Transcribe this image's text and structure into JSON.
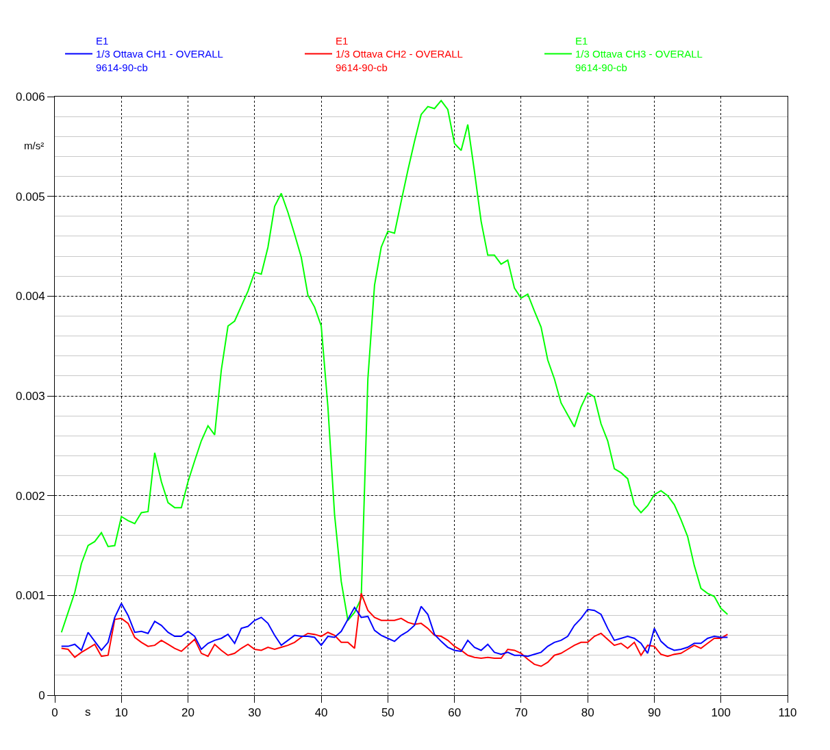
{
  "chart_data": {
    "type": "line",
    "xlabel": "s",
    "ylabel": "m/s²",
    "x": [
      1,
      2,
      3,
      4,
      5,
      6,
      7,
      8,
      9,
      10,
      11,
      12,
      13,
      14,
      15,
      16,
      17,
      18,
      19,
      20,
      21,
      22,
      23,
      24,
      25,
      26,
      27,
      28,
      29,
      30,
      31,
      32,
      33,
      34,
      35,
      36,
      37,
      38,
      39,
      40,
      41,
      42,
      43,
      44,
      45,
      46,
      47,
      48,
      49,
      50,
      51,
      52,
      53,
      54,
      55,
      56,
      57,
      58,
      59,
      60,
      61,
      62,
      63,
      64,
      65,
      66,
      67,
      68,
      69,
      70,
      71,
      72,
      73,
      74,
      75,
      76,
      77,
      78,
      79,
      80,
      81,
      82,
      83,
      84,
      85,
      86,
      87,
      88,
      89,
      90,
      91,
      92,
      93,
      94,
      95,
      96,
      97,
      98,
      99,
      100,
      101
    ],
    "xlim": [
      0,
      110
    ],
    "xticks": [
      0,
      10,
      20,
      30,
      40,
      50,
      60,
      70,
      80,
      90,
      100,
      110
    ],
    "ylim": [
      0,
      0.006
    ],
    "yticks": [
      0,
      0.001,
      0.002,
      0.003,
      0.004,
      0.005,
      0.006
    ],
    "grid": true,
    "legend": "top",
    "line_style": "solid",
    "series": [
      {
        "name": "E1\n1/3 Ottava CH1 - OVERALL\n9614-90-cb",
        "color": "#0000ff",
        "values": [
          0.00049,
          0.00049,
          0.00051,
          0.00045,
          0.00063,
          0.00054,
          0.00045,
          0.00053,
          0.00078,
          0.00092,
          0.0008,
          0.00063,
          0.00064,
          0.00062,
          0.00074,
          0.0007,
          0.00063,
          0.00059,
          0.00059,
          0.00064,
          0.00059,
          0.00046,
          0.00052,
          0.00055,
          0.00057,
          0.00061,
          0.00052,
          0.00067,
          0.00069,
          0.00075,
          0.00078,
          0.00072,
          0.0006,
          0.0005,
          0.00055,
          0.0006,
          0.00059,
          0.00059,
          0.00058,
          0.0005,
          0.00059,
          0.00058,
          0.00064,
          0.00076,
          0.00088,
          0.00078,
          0.00079,
          0.00065,
          0.0006,
          0.00057,
          0.00054,
          0.0006,
          0.00064,
          0.0007,
          0.00089,
          0.00081,
          0.00061,
          0.00054,
          0.00048,
          0.00045,
          0.00044,
          0.00055,
          0.00048,
          0.00045,
          0.00051,
          0.00043,
          0.00041,
          0.00043,
          0.0004,
          0.0004,
          0.00039,
          0.00041,
          0.00043,
          0.00049,
          0.00053,
          0.00055,
          0.00059,
          0.0007,
          0.00077,
          0.00086,
          0.00085,
          0.00081,
          0.00067,
          0.00055,
          0.00057,
          0.00059,
          0.00057,
          0.00052,
          0.00042,
          0.00067,
          0.00054,
          0.00048,
          0.00045,
          0.00046,
          0.00048,
          0.00052,
          0.00052,
          0.00057,
          0.00059,
          0.00058,
          0.00058
        ]
      },
      {
        "name": "E1\n1/3 Ottava CH2 - OVERALL\n9614-90-cb",
        "color": "#ff0000",
        "values": [
          0.00047,
          0.00046,
          0.00038,
          0.00043,
          0.00047,
          0.00051,
          0.00039,
          0.0004,
          0.00076,
          0.00077,
          0.00072,
          0.00058,
          0.00053,
          0.00049,
          0.0005,
          0.00055,
          0.00051,
          0.00047,
          0.00044,
          0.0005,
          0.00056,
          0.00042,
          0.00039,
          0.00051,
          0.00045,
          0.0004,
          0.00042,
          0.00047,
          0.00051,
          0.00046,
          0.00045,
          0.00048,
          0.00046,
          0.00048,
          0.0005,
          0.00053,
          0.00058,
          0.00062,
          0.00061,
          0.00059,
          0.00063,
          0.0006,
          0.00053,
          0.00053,
          0.00047,
          0.00102,
          0.00085,
          0.00078,
          0.00075,
          0.00075,
          0.00075,
          0.00077,
          0.00073,
          0.00071,
          0.00072,
          0.00067,
          0.0006,
          0.00059,
          0.00055,
          0.00049,
          0.00045,
          0.0004,
          0.00038,
          0.00037,
          0.00038,
          0.00037,
          0.00037,
          0.00046,
          0.00045,
          0.00042,
          0.00036,
          0.00031,
          0.00029,
          0.00033,
          0.0004,
          0.00042,
          0.00046,
          0.0005,
          0.00053,
          0.00053,
          0.00059,
          0.00062,
          0.00056,
          0.0005,
          0.00052,
          0.00047,
          0.00053,
          0.0004,
          0.0005,
          0.00049,
          0.00041,
          0.00039,
          0.00041,
          0.00042,
          0.00046,
          0.0005,
          0.00047,
          0.00052,
          0.00057,
          0.00057,
          0.00061
        ]
      },
      {
        "name": "E1\n1/3 Ottava CH3 - OVERALL\n9614-90-cb",
        "color": "#00ff00",
        "values": [
          0.00063,
          0.00083,
          0.00103,
          0.00132,
          0.0015,
          0.00154,
          0.00163,
          0.00149,
          0.0015,
          0.00179,
          0.00175,
          0.00172,
          0.00183,
          0.00184,
          0.00243,
          0.00214,
          0.00193,
          0.00188,
          0.00188,
          0.00214,
          0.00235,
          0.00255,
          0.0027,
          0.00261,
          0.00326,
          0.0037,
          0.00375,
          0.0039,
          0.00405,
          0.00424,
          0.00422,
          0.00449,
          0.0049,
          0.00503,
          0.00484,
          0.00462,
          0.00439,
          0.00401,
          0.00389,
          0.0037,
          0.00289,
          0.00181,
          0.00114,
          0.00075,
          0.00083,
          0.00097,
          0.00317,
          0.00411,
          0.00449,
          0.00465,
          0.00463,
          0.00495,
          0.00526,
          0.00555,
          0.00582,
          0.0059,
          0.00588,
          0.00596,
          0.00587,
          0.00553,
          0.00546,
          0.00572,
          0.00525,
          0.00475,
          0.00441,
          0.00441,
          0.00432,
          0.00436,
          0.00408,
          0.00398,
          0.00402,
          0.00385,
          0.00369,
          0.00336,
          0.00317,
          0.00293,
          0.00281,
          0.00269,
          0.00289,
          0.00303,
          0.00299,
          0.00272,
          0.00255,
          0.00227,
          0.00223,
          0.00217,
          0.00191,
          0.00183,
          0.0019,
          0.00201,
          0.00205,
          0.002,
          0.00191,
          0.00176,
          0.00159,
          0.0013,
          0.00107,
          0.00102,
          0.00099,
          0.00087,
          0.00081
        ]
      }
    ]
  }
}
